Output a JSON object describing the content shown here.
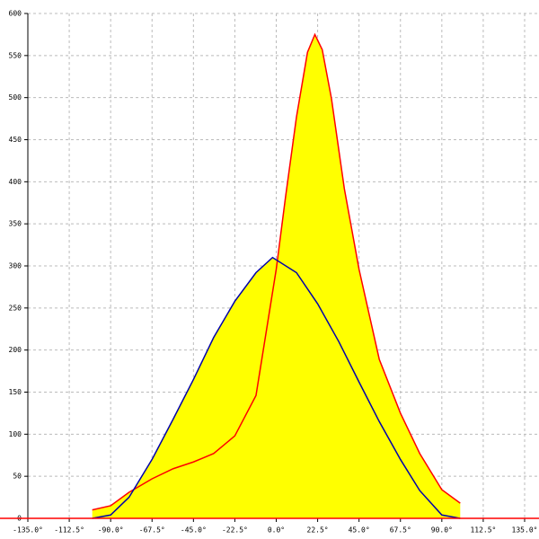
{
  "chart_data": {
    "type": "area",
    "xlim": [
      -135,
      135
    ],
    "ylim": [
      0,
      600
    ],
    "xticks": [
      {
        "value": -135,
        "label": "-135.0°"
      },
      {
        "value": -112.5,
        "label": "-112.5°"
      },
      {
        "value": -90,
        "label": "-90.0°"
      },
      {
        "value": -67.5,
        "label": "-67.5°"
      },
      {
        "value": -45,
        "label": "-45.0°"
      },
      {
        "value": -22.5,
        "label": "-22.5°"
      },
      {
        "value": 0,
        "label": "0.0°"
      },
      {
        "value": 22.5,
        "label": "22.5°"
      },
      {
        "value": 45,
        "label": "45.0°"
      },
      {
        "value": 67.5,
        "label": "67.5°"
      },
      {
        "value": 90,
        "label": "90.0°"
      },
      {
        "value": 112.5,
        "label": "112.5°"
      },
      {
        "value": 135,
        "label": "135.0°"
      }
    ],
    "yticks": [
      0,
      50,
      100,
      150,
      200,
      250,
      300,
      350,
      400,
      450,
      500,
      550,
      600
    ],
    "grid": true,
    "fill": "#ffff00",
    "series": [
      {
        "color": "#ff0000",
        "x": [
          -100,
          -90,
          -80,
          -67.5,
          -56,
          -45,
          -34,
          -22.5,
          -11,
          0,
          5,
          11,
          17,
          21,
          25,
          30,
          37,
          45,
          56,
          67.5,
          78,
          90,
          100
        ],
        "values": [
          10,
          15,
          31,
          47,
          59,
          67,
          77,
          98,
          146,
          296,
          381,
          477,
          554,
          575,
          557,
          499,
          392,
          296,
          189,
          125,
          77,
          34,
          18
        ]
      },
      {
        "color": "#0000aa",
        "x": [
          -100,
          -90,
          -80,
          -67.5,
          -56,
          -45,
          -34,
          -22.5,
          -11,
          -2,
          11,
          22.5,
          34,
          45,
          56,
          67.5,
          78,
          90,
          100
        ],
        "values": [
          0,
          4,
          25,
          70,
          118,
          165,
          215,
          258,
          292,
          310,
          292,
          255,
          210,
          162,
          115,
          70,
          33,
          4,
          0
        ]
      }
    ]
  }
}
